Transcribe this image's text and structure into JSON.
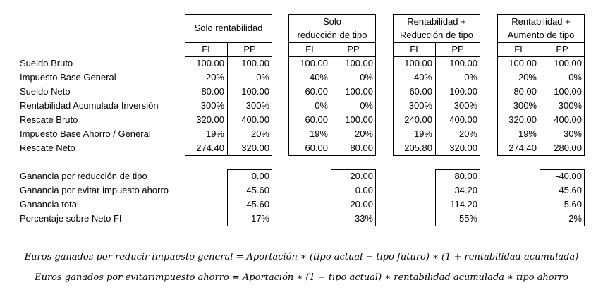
{
  "groups": [
    {
      "header": [
        "Solo rentabilidad"
      ],
      "fi": "FI",
      "pp": "PP"
    },
    {
      "header": [
        "Solo",
        "reducción de tipo"
      ],
      "fi": "FI",
      "pp": "PP"
    },
    {
      "header": [
        "Rentabilidad +",
        "Reducción de tipo"
      ],
      "fi": "FI",
      "pp": "PP"
    },
    {
      "header": [
        "Rentabilidad +",
        "Aumento de tipo"
      ],
      "fi": "FI",
      "pp": "PP"
    }
  ],
  "rows": [
    {
      "label": "Sueldo Bruto",
      "values": [
        "100.00",
        "100.00",
        "100.00",
        "100.00",
        "100.00",
        "100.00",
        "100.00",
        "100.00"
      ]
    },
    {
      "label": "Impuesto Base General",
      "values": [
        "20%",
        "0%",
        "40%",
        "0%",
        "40%",
        "0%",
        "20%",
        "0%"
      ]
    },
    {
      "label": "Sueldo Neto",
      "values": [
        "80.00",
        "100.00",
        "60.00",
        "100.00",
        "60.00",
        "100.00",
        "80.00",
        "100.00"
      ]
    },
    {
      "label": "Rentabilidad Acumulada Inversión",
      "values": [
        "300%",
        "300%",
        "0%",
        "0%",
        "300%",
        "300%",
        "300%",
        "300%"
      ]
    },
    {
      "label": "Rescate Bruto",
      "values": [
        "320.00",
        "400.00",
        "60.00",
        "100.00",
        "240.00",
        "400.00",
        "320.00",
        "400.00"
      ]
    },
    {
      "label": "Impuesto Base Ahorro / General",
      "values": [
        "19%",
        "20%",
        "19%",
        "20%",
        "19%",
        "20%",
        "19%",
        "30%"
      ]
    },
    {
      "label": "Rescate Neto",
      "values": [
        "274.40",
        "320.00",
        "60.00",
        "80.00",
        "205.80",
        "320.00",
        "274.40",
        "280.00"
      ]
    }
  ],
  "summary_rows": [
    {
      "label": "Ganancia por reducción de tipo",
      "values": [
        "0.00",
        "20.00",
        "80.00",
        "-40.00"
      ]
    },
    {
      "label": "Ganancia por evitar impuesto ahorro",
      "values": [
        "45.60",
        "0.00",
        "34.20",
        "45.60"
      ]
    },
    {
      "label": "Ganancia total",
      "values": [
        "45.60",
        "20.00",
        "114.20",
        "5.60"
      ]
    },
    {
      "label": "Porcentaje sobre Neto FI",
      "values": [
        "17%",
        "33%",
        "55%",
        "2%"
      ]
    }
  ],
  "formulas": [
    "Euros ganados por reducir impuesto general = Aportación ∗ (tipo actual − tipo futuro) ∗ (1 + rentabilidad acumulada)",
    "Euros ganados por evitarimpuesto ahorro = Aportación  ∗ (1 −  tipo actual) ∗ rentabilidad acumulada  ∗ tipo ahorro"
  ]
}
